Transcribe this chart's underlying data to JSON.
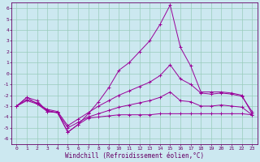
{
  "xlabel": "Windchill (Refroidissement éolien,°C)",
  "background_color": "#cce8f0",
  "grid_color": "#99ccbb",
  "line_color": "#990099",
  "xlim": [
    -0.5,
    23.5
  ],
  "ylim": [
    -6.5,
    6.5
  ],
  "xticks": [
    0,
    1,
    2,
    3,
    4,
    5,
    6,
    7,
    8,
    9,
    10,
    11,
    12,
    13,
    14,
    15,
    16,
    17,
    18,
    19,
    20,
    21,
    22,
    23
  ],
  "yticks": [
    -6,
    -5,
    -4,
    -3,
    -2,
    -1,
    0,
    1,
    2,
    3,
    4,
    5,
    6
  ],
  "series1_x": [
    0,
    1,
    2,
    3,
    4,
    5,
    6,
    7,
    8,
    9,
    10,
    11,
    12,
    13,
    14,
    15,
    16,
    17,
    18,
    19,
    20,
    21,
    22,
    23
  ],
  "series1_y": [
    -3.0,
    -2.2,
    -2.8,
    -3.5,
    -3.6,
    -5.4,
    -4.7,
    -4.1,
    -4.0,
    -3.9,
    -3.8,
    -3.8,
    -3.8,
    -3.8,
    -3.7,
    -3.7,
    -3.7,
    -3.7,
    -3.7,
    -3.7,
    -3.7,
    -3.7,
    -3.7,
    -3.8
  ],
  "series2_x": [
    0,
    1,
    2,
    3,
    4,
    5,
    6,
    7,
    8,
    9,
    10,
    11,
    12,
    13,
    14,
    15,
    16,
    17,
    18,
    19,
    20,
    21,
    22,
    23
  ],
  "series2_y": [
    -3.0,
    -2.2,
    -2.5,
    -3.5,
    -3.6,
    -5.4,
    -4.7,
    -3.7,
    -2.6,
    -1.3,
    0.3,
    1.0,
    2.0,
    3.0,
    4.5,
    6.3,
    2.4,
    0.7,
    -1.7,
    -1.7,
    -1.7,
    -1.8,
    -2.0,
    -3.7
  ],
  "series3_x": [
    0,
    1,
    2,
    3,
    4,
    5,
    6,
    7,
    8,
    9,
    10,
    11,
    12,
    13,
    14,
    15,
    16,
    17,
    18,
    19,
    20,
    21,
    22,
    23
  ],
  "series3_y": [
    -3.0,
    -2.5,
    -2.8,
    -3.3,
    -3.5,
    -4.8,
    -4.2,
    -3.6,
    -3.0,
    -2.5,
    -2.0,
    -1.6,
    -1.2,
    -0.8,
    -0.2,
    0.8,
    -0.5,
    -1.0,
    -1.8,
    -1.9,
    -1.8,
    -1.9,
    -2.1,
    -3.5
  ],
  "series4_x": [
    0,
    1,
    2,
    3,
    4,
    5,
    6,
    7,
    8,
    9,
    10,
    11,
    12,
    13,
    14,
    15,
    16,
    17,
    18,
    19,
    20,
    21,
    22,
    23
  ],
  "series4_y": [
    -3.0,
    -2.4,
    -2.7,
    -3.4,
    -3.6,
    -5.0,
    -4.5,
    -4.0,
    -3.7,
    -3.4,
    -3.1,
    -2.9,
    -2.7,
    -2.5,
    -2.2,
    -1.7,
    -2.5,
    -2.6,
    -3.0,
    -3.0,
    -2.9,
    -3.0,
    -3.1,
    -3.8
  ],
  "xlabel_fontsize": 5.5,
  "tick_fontsize": 4.5
}
